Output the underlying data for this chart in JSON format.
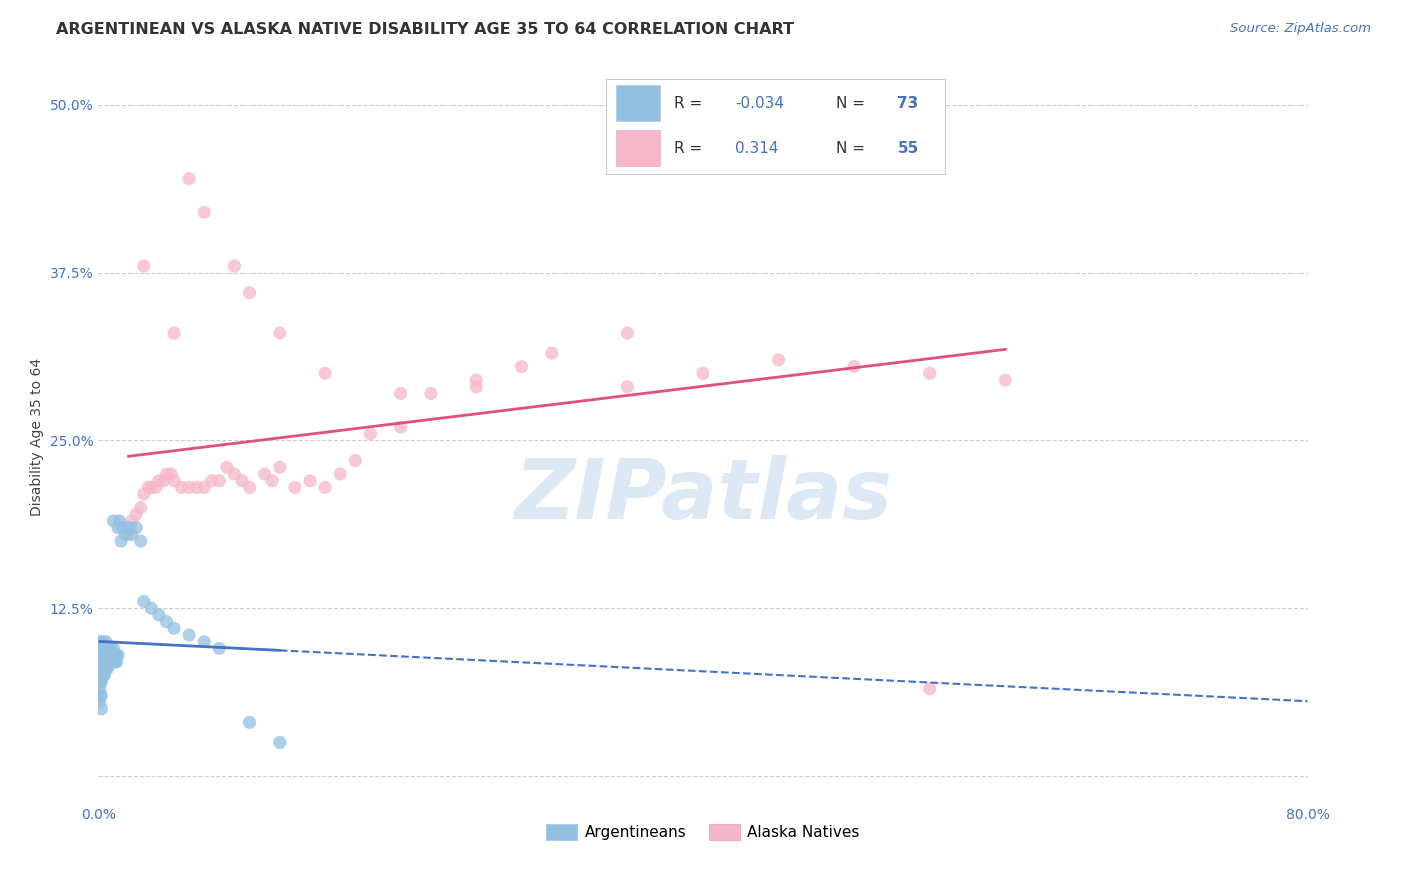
{
  "title": "ARGENTINEAN VS ALASKA NATIVE DISABILITY AGE 35 TO 64 CORRELATION CHART",
  "source": "Source: ZipAtlas.com",
  "ylabel": "Disability Age 35 to 64",
  "xlim": [
    0.0,
    0.8
  ],
  "ylim": [
    -0.02,
    0.525
  ],
  "xticks": [
    0.0,
    0.2,
    0.4,
    0.6,
    0.8
  ],
  "xticklabels": [
    "0.0%",
    "",
    "",
    "",
    "80.0%"
  ],
  "yticks": [
    0.0,
    0.125,
    0.25,
    0.375,
    0.5
  ],
  "yticklabels": [
    "",
    "12.5%",
    "25.0%",
    "37.5%",
    "50.0%"
  ],
  "legend_labels": [
    "Argentineans",
    "Alaska Natives"
  ],
  "blue_color": "#92C0E0",
  "pink_color": "#F5B8C8",
  "blue_line_color": "#4472C4",
  "pink_line_color": "#E05080",
  "watermark_text": "ZIPatlas",
  "watermark_color": "#C5D9EE",
  "background_color": "#FFFFFF",
  "grid_color": "#CCCCCC",
  "r_argentinean": -0.034,
  "r_alaska": 0.314,
  "n_argentinean": 73,
  "n_alaska": 55,
  "argentinean_x": [
    0.001,
    0.001,
    0.001,
    0.001,
    0.001,
    0.001,
    0.001,
    0.001,
    0.001,
    0.001,
    0.002,
    0.002,
    0.002,
    0.002,
    0.002,
    0.002,
    0.002,
    0.002,
    0.003,
    0.003,
    0.003,
    0.003,
    0.003,
    0.003,
    0.004,
    0.004,
    0.004,
    0.004,
    0.004,
    0.005,
    0.005,
    0.005,
    0.005,
    0.005,
    0.006,
    0.006,
    0.006,
    0.006,
    0.007,
    0.007,
    0.007,
    0.008,
    0.008,
    0.008,
    0.009,
    0.009,
    0.01,
    0.01,
    0.01,
    0.011,
    0.011,
    0.012,
    0.012,
    0.013,
    0.013,
    0.014,
    0.015,
    0.016,
    0.018,
    0.02,
    0.022,
    0.025,
    0.028,
    0.03,
    0.035,
    0.04,
    0.045,
    0.05,
    0.06,
    0.07,
    0.08,
    0.1,
    0.12
  ],
  "argentinean_y": [
    0.09,
    0.095,
    0.1,
    0.085,
    0.08,
    0.075,
    0.07,
    0.065,
    0.06,
    0.055,
    0.095,
    0.09,
    0.085,
    0.08,
    0.075,
    0.07,
    0.06,
    0.05,
    0.1,
    0.095,
    0.09,
    0.085,
    0.08,
    0.075,
    0.095,
    0.09,
    0.085,
    0.08,
    0.075,
    0.1,
    0.095,
    0.09,
    0.085,
    0.08,
    0.095,
    0.09,
    0.085,
    0.08,
    0.095,
    0.09,
    0.085,
    0.095,
    0.09,
    0.085,
    0.09,
    0.085,
    0.095,
    0.19,
    0.085,
    0.09,
    0.085,
    0.09,
    0.085,
    0.09,
    0.185,
    0.19,
    0.175,
    0.185,
    0.18,
    0.185,
    0.18,
    0.185,
    0.175,
    0.13,
    0.125,
    0.12,
    0.115,
    0.11,
    0.105,
    0.1,
    0.095,
    0.04,
    0.025
  ],
  "alaska_x": [
    0.02,
    0.022,
    0.025,
    0.028,
    0.03,
    0.033,
    0.035,
    0.038,
    0.04,
    0.043,
    0.045,
    0.048,
    0.05,
    0.055,
    0.06,
    0.065,
    0.07,
    0.075,
    0.08,
    0.085,
    0.09,
    0.095,
    0.1,
    0.11,
    0.115,
    0.12,
    0.13,
    0.14,
    0.15,
    0.16,
    0.17,
    0.18,
    0.2,
    0.22,
    0.25,
    0.28,
    0.3,
    0.35,
    0.4,
    0.45,
    0.5,
    0.55,
    0.6,
    0.03,
    0.05,
    0.06,
    0.07,
    0.09,
    0.1,
    0.12,
    0.15,
    0.2,
    0.25,
    0.35,
    0.55
  ],
  "alaska_y": [
    0.18,
    0.19,
    0.195,
    0.2,
    0.21,
    0.215,
    0.215,
    0.215,
    0.22,
    0.22,
    0.225,
    0.225,
    0.22,
    0.215,
    0.215,
    0.215,
    0.215,
    0.22,
    0.22,
    0.23,
    0.225,
    0.22,
    0.215,
    0.225,
    0.22,
    0.23,
    0.215,
    0.22,
    0.215,
    0.225,
    0.235,
    0.255,
    0.26,
    0.285,
    0.29,
    0.305,
    0.315,
    0.33,
    0.3,
    0.31,
    0.305,
    0.3,
    0.295,
    0.38,
    0.33,
    0.445,
    0.42,
    0.38,
    0.36,
    0.33,
    0.3,
    0.285,
    0.295,
    0.29,
    0.065
  ]
}
